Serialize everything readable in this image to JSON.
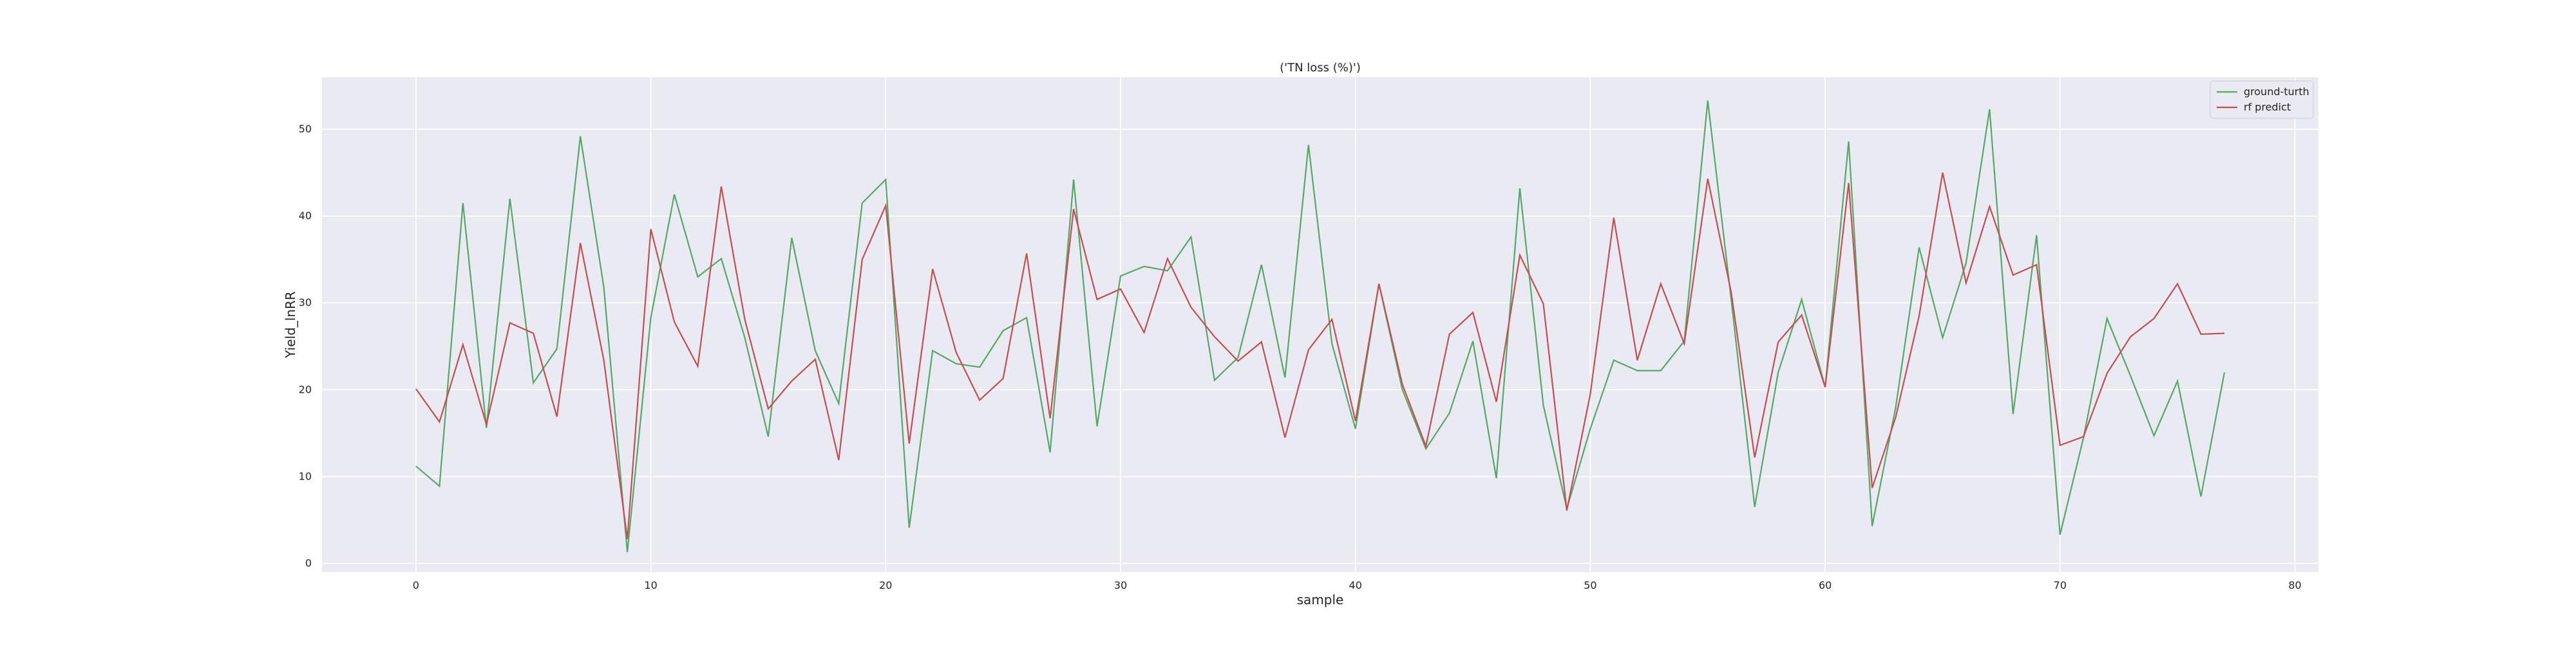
{
  "chart_data": {
    "type": "line",
    "title": "('TN loss (%)')",
    "xlabel": "sample",
    "ylabel": "Yield_lnRR",
    "xlim": [
      -4,
      81
    ],
    "ylim": [
      -1,
      56
    ],
    "xticks": [
      0,
      10,
      20,
      30,
      40,
      50,
      60,
      70,
      80
    ],
    "yticks": [
      0,
      10,
      20,
      30,
      40,
      50
    ],
    "grid": true,
    "legend_position": "top-right",
    "x": [
      0,
      1,
      2,
      3,
      4,
      5,
      6,
      7,
      8,
      9,
      10,
      11,
      12,
      13,
      14,
      15,
      16,
      17,
      18,
      19,
      20,
      21,
      22,
      23,
      24,
      25,
      26,
      27,
      28,
      29,
      30,
      31,
      32,
      33,
      34,
      35,
      36,
      37,
      38,
      39,
      40,
      41,
      42,
      43,
      44,
      45,
      46,
      47,
      48,
      49,
      50,
      51,
      52,
      53,
      54,
      55,
      56,
      57,
      58,
      59,
      60,
      61,
      62,
      63,
      64,
      65,
      66,
      67,
      68,
      69,
      70,
      71,
      72,
      73,
      74,
      75,
      76,
      77
    ],
    "series": [
      {
        "name": "ground-turth",
        "color": "#55a868",
        "values": [
          11.2,
          8.9,
          41.5,
          15.6,
          42.0,
          20.8,
          24.7,
          49.2,
          31.8,
          1.3,
          28.3,
          42.5,
          33.0,
          35.1,
          26.0,
          14.6,
          37.5,
          24.5,
          18.4,
          41.5,
          44.2,
          4.1,
          24.5,
          23.0,
          22.6,
          26.8,
          28.3,
          12.8,
          44.2,
          15.8,
          33.1,
          34.2,
          33.7,
          37.6,
          21.1,
          23.7,
          34.4,
          21.4,
          48.2,
          25.3,
          15.5,
          32.2,
          20.0,
          13.2,
          17.3,
          25.6,
          9.8,
          43.2,
          18.2,
          6.3,
          15.5,
          23.4,
          22.2,
          22.2,
          25.6,
          53.3,
          30.4,
          6.5,
          22.0,
          30.4,
          20.3,
          48.6,
          4.3,
          17.9,
          36.4,
          26.0,
          34.6,
          52.3,
          17.2,
          37.8,
          3.3,
          14.5,
          28.2,
          21.6,
          14.7,
          21.0,
          7.7,
          22.0
        ]
      },
      {
        "name": "rf predict",
        "color": "#c44e52",
        "values": [
          20.1,
          16.3,
          25.2,
          16.0,
          27.7,
          26.5,
          16.9,
          36.9,
          23.4,
          2.8,
          38.5,
          27.8,
          22.7,
          43.4,
          28.1,
          17.8,
          21.0,
          23.5,
          11.9,
          35.0,
          41.2,
          13.8,
          33.9,
          24.3,
          18.8,
          21.3,
          35.7,
          16.7,
          40.8,
          30.4,
          31.6,
          26.6,
          35.1,
          29.5,
          26.1,
          23.3,
          25.5,
          14.5,
          24.6,
          28.1,
          16.4,
          32.2,
          20.6,
          13.5,
          26.4,
          28.9,
          18.6,
          35.5,
          29.9,
          6.1,
          19.5,
          39.8,
          23.4,
          32.2,
          25.3,
          44.3,
          31.2,
          12.2,
          25.5,
          28.6,
          20.3,
          43.8,
          8.7,
          16.8,
          28.5,
          45.0,
          32.3,
          41.1,
          33.2,
          34.4,
          13.6,
          14.6,
          21.9,
          26.1,
          28.2,
          32.2,
          26.4,
          26.5
        ]
      }
    ]
  }
}
